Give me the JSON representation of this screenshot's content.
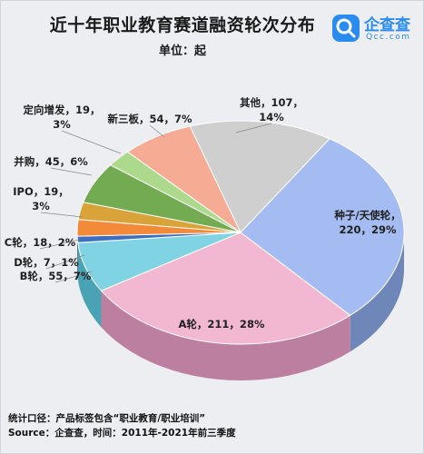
{
  "title": "近十年职业教育赛道融资轮次分布",
  "unit": "单位：起",
  "logo": {
    "name": "企查查",
    "domain": "Qcc.com"
  },
  "note": "统计口径：产品标签包含“职业教育/职业培训”",
  "source": "Source：企查查，时间：2011年-2021年前三季度",
  "chart_data": {
    "type": "pie",
    "style": "3d",
    "title": "近十年职业教育赛道融资轮次分布",
    "unit": "单位：起",
    "slices": [
      {
        "name": "种子/天使轮",
        "value": 220,
        "percent": "29%",
        "color": "#a4bcf2",
        "side_color": "#6f86b8"
      },
      {
        "name": "A轮",
        "value": 211,
        "percent": "28%",
        "color": "#f2b8d2",
        "side_color": "#bd7fa0"
      },
      {
        "name": "B轮",
        "value": 55,
        "percent": "7%",
        "color": "#7fd3e3",
        "side_color": "#4aa3b4"
      },
      {
        "name": "D轮",
        "value": 7,
        "percent": "1%",
        "color": "#3e6fbe",
        "side_color": "#2a4f8c"
      },
      {
        "name": "C轮",
        "value": 18,
        "percent": "2%",
        "color": "#f28a3a",
        "side_color": "#b8621f"
      },
      {
        "name": "IPO",
        "value": 19,
        "percent": "3%",
        "color": "#d9a33a",
        "side_color": "#a07525"
      },
      {
        "name": "并购",
        "value": 45,
        "percent": "6%",
        "color": "#72ab52",
        "side_color": "#4f7d37"
      },
      {
        "name": "定向增发",
        "value": 19,
        "percent": "3%",
        "color": "#acd98c",
        "side_color": "#7fa865"
      },
      {
        "name": "新三板",
        "value": 54,
        "percent": "7%",
        "color": "#f6ab95",
        "side_color": "#c07865"
      },
      {
        "name": "其他",
        "value": 107,
        "percent": "14%",
        "color": "#cfcfcf",
        "side_color": "#9a9a9a"
      }
    ],
    "labels": [
      {
        "slice": "其他",
        "line1": "其他，107，",
        "line2": "14%"
      },
      {
        "slice": "种子/天使轮",
        "line1": "种子/天使轮，",
        "line2": "220，29%"
      },
      {
        "slice": "A轮",
        "line1": "A轮，211，28%"
      },
      {
        "slice": "B轮",
        "line1": "B轮，55，7%"
      },
      {
        "slice": "D轮",
        "line1": "D轮，7，1%"
      },
      {
        "slice": "C轮",
        "line1": "C轮，18，2%"
      },
      {
        "slice": "IPO",
        "line1": "IPO，19，",
        "line2": "3%"
      },
      {
        "slice": "并购",
        "line1": "并购，45，6%"
      },
      {
        "slice": "定向增发",
        "line1": "定向增发，19，",
        "line2": "3%"
      },
      {
        "slice": "新三板",
        "line1": "新三板，54，7%"
      }
    ]
  }
}
